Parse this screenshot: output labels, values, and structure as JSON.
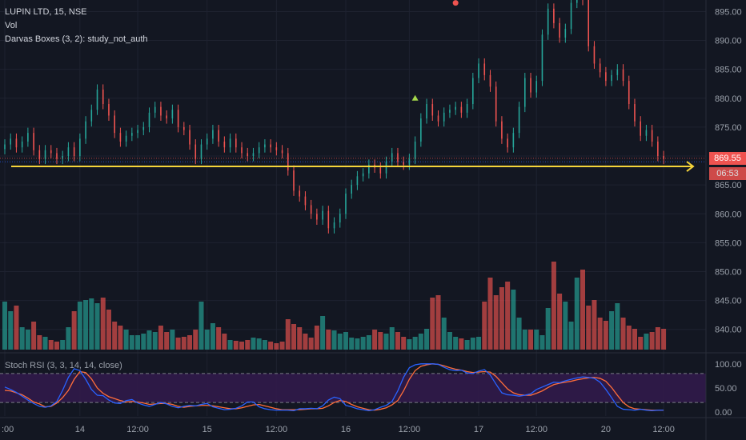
{
  "legend": {
    "symbol": "LUPIN LTD, 15, NSE",
    "vol": "Vol",
    "darvas": "Darvas Boxes (3, 2): study_not_auth",
    "stoch_rsi": "Stoch RSI (3, 3, 14, 14, close)"
  },
  "price_tag": {
    "last": "869.55",
    "countdown": "06:53"
  },
  "colors": {
    "bg": "#131722",
    "up": "#26a69a",
    "down": "#ef5350",
    "arrow": "#f5d43a",
    "rsi_k": "#2962ff",
    "rsi_d": "#ff6d3a",
    "rsi_band": "#311a4a"
  },
  "chart_data": [
    {
      "type": "candlestick",
      "title": "LUPIN LTD, 15, NSE",
      "y_ticks": [
        "895.00",
        "890.00",
        "885.00",
        "880.00",
        "875.00",
        "870.00",
        "865.00",
        "860.00",
        "855.00",
        "850.00",
        "845.00",
        "840.00"
      ],
      "ylim": [
        836.5,
        897
      ],
      "x_tick_labels": [
        ":00",
        "14",
        "12:00",
        "15",
        "12:00",
        "16",
        "12:00",
        "17",
        "12:00",
        "20",
        "12:00"
      ],
      "x_tick_index": [
        0,
        13,
        23,
        35,
        47,
        59,
        70,
        82,
        92,
        104,
        114
      ],
      "close": [
        872.0,
        873.0,
        871.5,
        872.5,
        874.0,
        871.0,
        869.5,
        871.0,
        870.5,
        869.5,
        870.0,
        871.5,
        870.0,
        873.0,
        876.0,
        878.0,
        881.5,
        879.0,
        877.0,
        874.0,
        872.5,
        873.5,
        874.0,
        874.5,
        875.0,
        877.5,
        878.5,
        877.0,
        876.5,
        878.0,
        875.0,
        874.5,
        872.0,
        869.5,
        872.0,
        873.0,
        874.5,
        872.5,
        871.5,
        873.0,
        871.5,
        870.5,
        870.0,
        870.5,
        871.5,
        872.0,
        871.5,
        871.0,
        870.5,
        867.5,
        864.0,
        863.0,
        861.5,
        860.0,
        859.0,
        860.5,
        857.5,
        858.5,
        860.0,
        863.5,
        865.0,
        866.5,
        867.0,
        868.5,
        868.0,
        867.0,
        869.0,
        870.5,
        869.0,
        868.5,
        869.5,
        872.5,
        876.5,
        879.0,
        877.0,
        876.0,
        877.5,
        878.0,
        878.5,
        877.5,
        879.0,
        883.5,
        886.0,
        884.0,
        882.0,
        876.0,
        873.0,
        871.5,
        874.0,
        878.5,
        883.5,
        881.0,
        883.0,
        891.0,
        895.5,
        893.0,
        890.5,
        892.0,
        896.5,
        899.0,
        897.0,
        889.0,
        886.0,
        884.5,
        883.0,
        884.0,
        885.0,
        883.0,
        879.0,
        876.0,
        873.5,
        874.5,
        872.5,
        870.0,
        869.5
      ],
      "volume_ylim": [
        0,
        120
      ],
      "volume": [
        60,
        48,
        55,
        28,
        25,
        35,
        18,
        16,
        12,
        10,
        12,
        28,
        48,
        60,
        62,
        64,
        58,
        65,
        50,
        35,
        30,
        25,
        18,
        18,
        20,
        24,
        22,
        30,
        22,
        25,
        15,
        16,
        18,
        25,
        60,
        25,
        33,
        28,
        20,
        12,
        11,
        10,
        12,
        15,
        14,
        12,
        10,
        8,
        10,
        38,
        32,
        28,
        20,
        15,
        30,
        42,
        25,
        24,
        20,
        22,
        15,
        14,
        16,
        18,
        25,
        22,
        20,
        28,
        22,
        16,
        13,
        16,
        20,
        26,
        65,
        68,
        40,
        22,
        16,
        14,
        12,
        15,
        16,
        60,
        90,
        68,
        78,
        85,
        75,
        40,
        25,
        25,
        25,
        18,
        52,
        110,
        70,
        60,
        35,
        90,
        100,
        55,
        62,
        40,
        36,
        48,
        58,
        40,
        30,
        26,
        16,
        20,
        22,
        28,
        26
      ],
      "stoch_rsi_ylim": [
        -8,
        108
      ],
      "stoch_rsi_ticks": [
        "100.00",
        "50.00",
        "0.00"
      ],
      "stoch_rsi_bands": [
        80,
        20
      ],
      "stoch_rsi_k": [
        52,
        47,
        41,
        33,
        25,
        18,
        12,
        10,
        13,
        22,
        45,
        72,
        90,
        86,
        68,
        47,
        35,
        34,
        25,
        19,
        18,
        24,
        26,
        19,
        15,
        12,
        16,
        20,
        17,
        12,
        9,
        12,
        14,
        13,
        16,
        18,
        11,
        8,
        5,
        6,
        8,
        13,
        21,
        21,
        11,
        7,
        5,
        4,
        4,
        4,
        3,
        7,
        7,
        8,
        7,
        13,
        25,
        31,
        28,
        14,
        11,
        7,
        5,
        3,
        5,
        10,
        14,
        22,
        44,
        72,
        92,
        98,
        100,
        100,
        100,
        99,
        93,
        88,
        86,
        87,
        81,
        80,
        85,
        88,
        77,
        58,
        40,
        36,
        35,
        33,
        35,
        38,
        47,
        52,
        57,
        62,
        61,
        65,
        68,
        71,
        73,
        72,
        70,
        62,
        47,
        30,
        12,
        6,
        5,
        4,
        6,
        4,
        3,
        4,
        4
      ],
      "stoch_rsi_d": [
        45,
        44,
        40,
        36,
        29,
        21,
        17,
        11,
        12,
        19,
        30,
        45,
        68,
        84,
        82,
        69,
        50,
        39,
        32,
        28,
        24,
        21,
        22,
        21,
        19,
        16,
        17,
        18,
        18,
        16,
        12,
        10,
        12,
        13,
        14,
        14,
        13,
        11,
        9,
        7,
        7,
        9,
        12,
        15,
        16,
        13,
        10,
        7,
        5,
        5,
        5,
        5,
        6,
        7,
        7,
        8,
        13,
        20,
        24,
        22,
        16,
        11,
        8,
        5,
        4,
        6,
        9,
        15,
        24,
        44,
        68,
        86,
        95,
        98,
        100,
        99,
        96,
        92,
        89,
        87,
        84,
        82,
        83,
        84,
        83,
        74,
        61,
        48,
        40,
        36,
        35,
        35,
        39,
        44,
        51,
        57,
        60,
        62,
        64,
        67,
        69,
        71,
        72,
        70,
        64,
        51,
        35,
        20,
        11,
        7,
        6,
        5,
        4,
        4,
        4
      ],
      "horizontal_line": 868.2,
      "dotted_levels": [
        869.6,
        869.0
      ],
      "markers": [
        {
          "index": 71,
          "shape": "triangle-up",
          "price": 880.0
        },
        {
          "index": 78,
          "shape": "circle",
          "price": 896.5
        }
      ]
    }
  ]
}
